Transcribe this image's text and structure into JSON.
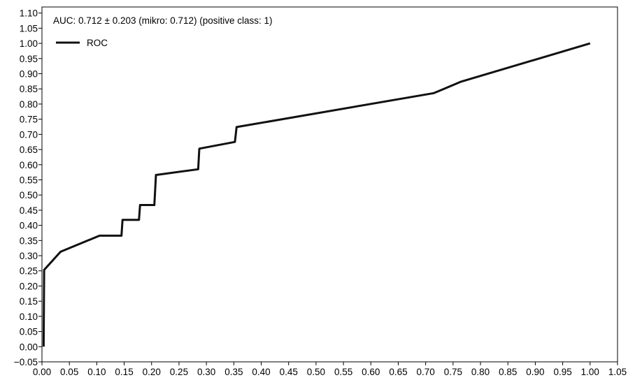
{
  "chart_data": {
    "type": "line",
    "annotation": "AUC: 0.712 ± 0.203 (mikro: 0.712) (positive class: 1)",
    "xlabel": "",
    "ylabel": "",
    "xlim": [
      0.0,
      1.05
    ],
    "ylim": [
      -0.05,
      1.12
    ],
    "x_ticks": [
      "0.00",
      "0.05",
      "0.10",
      "0.15",
      "0.20",
      "0.25",
      "0.30",
      "0.35",
      "0.40",
      "0.45",
      "0.50",
      "0.55",
      "0.60",
      "0.65",
      "0.70",
      "0.75",
      "0.80",
      "0.85",
      "0.90",
      "0.95",
      "1.00",
      "1.05"
    ],
    "y_ticks": [
      "−0.05",
      "0.00",
      "0.05",
      "0.10",
      "0.15",
      "0.20",
      "0.25",
      "0.30",
      "0.35",
      "0.40",
      "0.45",
      "0.50",
      "0.55",
      "0.60",
      "0.65",
      "0.70",
      "0.75",
      "0.80",
      "0.85",
      "0.90",
      "0.95",
      "1.00",
      "1.05",
      "1.10"
    ],
    "legend": {
      "position": "top-left",
      "entries": [
        "ROC"
      ]
    },
    "grid": false,
    "series": [
      {
        "name": "ROC",
        "color": "#111111",
        "x": [
          0.003,
          0.004,
          0.034,
          0.105,
          0.145,
          0.147,
          0.177,
          0.179,
          0.205,
          0.208,
          0.285,
          0.287,
          0.352,
          0.355,
          0.715,
          0.765,
          1.0
        ],
        "y": [
          0.0,
          0.253,
          0.313,
          0.366,
          0.366,
          0.418,
          0.418,
          0.467,
          0.467,
          0.566,
          0.585,
          0.653,
          0.675,
          0.724,
          0.836,
          0.874,
          1.0
        ]
      }
    ]
  }
}
